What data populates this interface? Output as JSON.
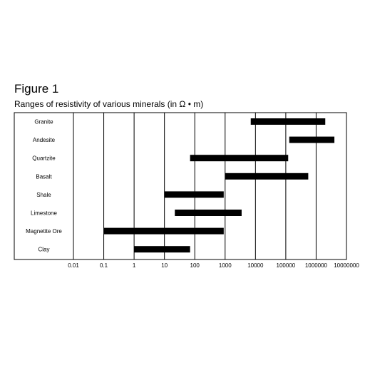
{
  "figure_label": "Figure 1",
  "chart_data": {
    "type": "bar",
    "orientation": "horizontal-range",
    "title": "Ranges of resistivity of various minerals (in Ω • m)",
    "xscale": "log",
    "xlim": [
      0.01,
      10000000
    ],
    "xlabel": "",
    "ylabel": "",
    "grid": true,
    "xticks": [
      "0.01",
      "0.1",
      "1",
      "10",
      "100",
      "1000",
      "10000",
      "100000",
      "1000000",
      "10000000"
    ],
    "categories": [
      "Granite",
      "Andesite",
      "Quartzite",
      "Basalt",
      "Shale",
      "Limestone",
      "Magnetite Ore",
      "Clay"
    ],
    "ranges": [
      [
        7000,
        2000000
      ],
      [
        130000,
        4000000
      ],
      [
        70,
        120000
      ],
      [
        1000,
        550000
      ],
      [
        10,
        900
      ],
      [
        22,
        3500
      ],
      [
        0.1,
        900
      ],
      [
        1,
        70
      ]
    ]
  }
}
